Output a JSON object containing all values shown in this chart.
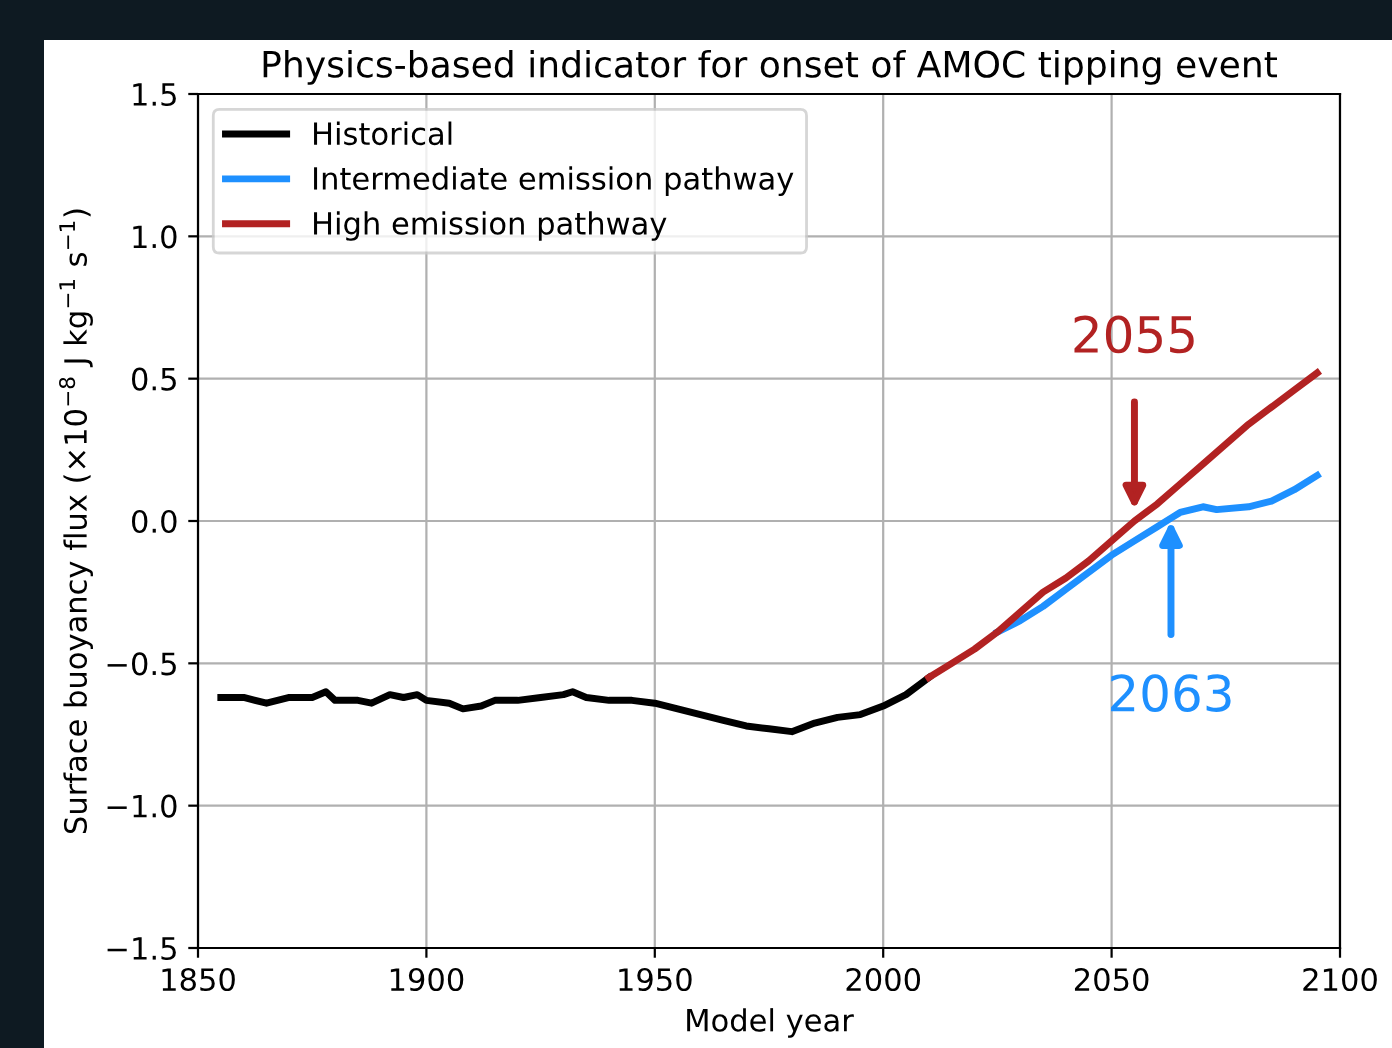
{
  "chart_data": {
    "type": "line",
    "title": "Physics-based indicator for onset of AMOC tipping event",
    "xlabel": "Model year",
    "ylabel": "Surface buoyancy flux (×10$^{−8}$ J kg$^{−1}$ s$^{−1}$)",
    "series": [
      {
        "name": "Historical",
        "color": "#000000",
        "x": [
          1855,
          1860,
          1865,
          1870,
          1875,
          1878,
          1880,
          1885,
          1888,
          1892,
          1895,
          1898,
          1900,
          1905,
          1908,
          1912,
          1915,
          1920,
          1925,
          1930,
          1932,
          1935,
          1940,
          1945,
          1950,
          1955,
          1960,
          1965,
          1970,
          1975,
          1980,
          1985,
          1990,
          1995,
          2000,
          2005,
          2010
        ],
        "values": [
          -0.62,
          -0.62,
          -0.64,
          -0.62,
          -0.62,
          -0.6,
          -0.63,
          -0.63,
          -0.64,
          -0.61,
          -0.62,
          -0.61,
          -0.63,
          -0.64,
          -0.66,
          -0.65,
          -0.63,
          -0.63,
          -0.62,
          -0.61,
          -0.6,
          -0.62,
          -0.63,
          -0.63,
          -0.64,
          -0.66,
          -0.68,
          -0.7,
          -0.72,
          -0.73,
          -0.74,
          -0.71,
          -0.69,
          -0.68,
          -0.65,
          -0.61,
          -0.55
        ]
      },
      {
        "name": "Intermediate emission pathway",
        "color": "#1e90ff",
        "x": [
          2025,
          2030,
          2035,
          2040,
          2045,
          2050,
          2055,
          2060,
          2063,
          2065,
          2070,
          2073,
          2080,
          2085,
          2090,
          2095
        ],
        "values": [
          -0.39,
          -0.35,
          -0.3,
          -0.24,
          -0.18,
          -0.12,
          -0.07,
          -0.02,
          0.01,
          0.03,
          0.05,
          0.04,
          0.05,
          0.07,
          0.11,
          0.16
        ]
      },
      {
        "name": "High emission pathway",
        "color": "#b22222",
        "x": [
          2010,
          2015,
          2020,
          2025,
          2030,
          2035,
          2040,
          2045,
          2050,
          2055,
          2060,
          2065,
          2070,
          2075,
          2080,
          2085,
          2090,
          2095
        ],
        "values": [
          -0.55,
          -0.5,
          -0.45,
          -0.39,
          -0.32,
          -0.25,
          -0.2,
          -0.14,
          -0.07,
          0.0,
          0.06,
          0.13,
          0.2,
          0.27,
          0.34,
          0.4,
          0.46,
          0.52
        ]
      }
    ],
    "annotations": [
      {
        "text": "2055",
        "x": 2055,
        "y": 0.04
      },
      {
        "text": "2063",
        "x": 2063,
        "y": 0.0
      }
    ],
    "xlim": [
      1850,
      2100
    ],
    "xticks": [
      1850,
      1900,
      1950,
      2000,
      2050,
      2100
    ],
    "ylim": [
      -1.5,
      1.5
    ],
    "yticks": [
      -1.5,
      {
        "value": -1,
        "label": "−1.0"
      },
      -0.5,
      {
        "value": 0,
        "label": "0.0"
      },
      0.5,
      {
        "value": 1,
        "label": "1.0"
      },
      1.5
    ],
    "grid": true,
    "legend": "top left",
    "marker": "none",
    "line_style": "solid"
  }
}
